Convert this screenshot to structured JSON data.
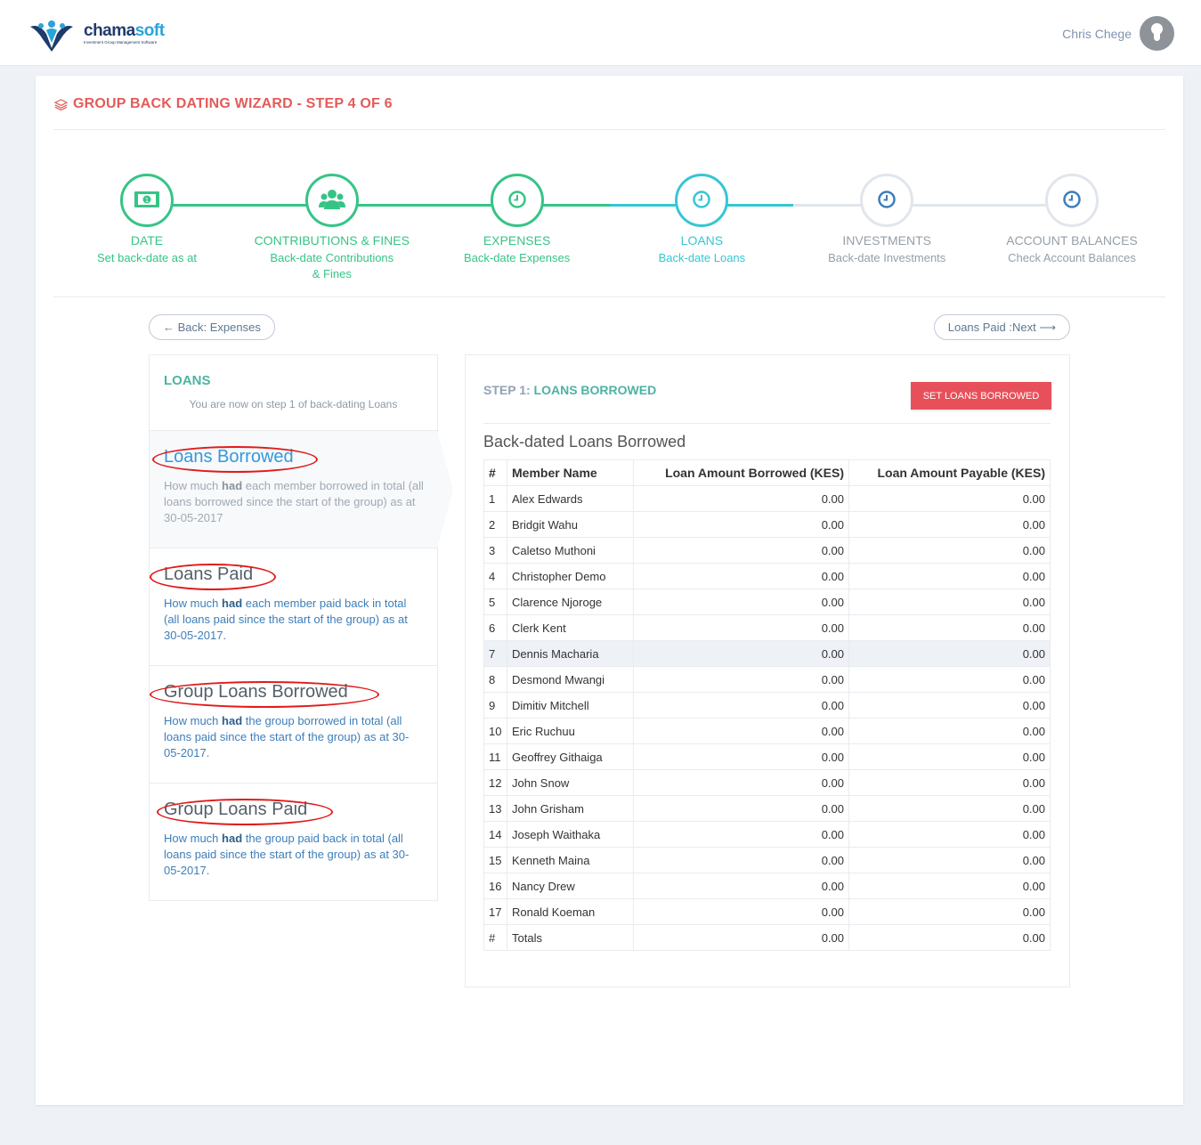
{
  "brand": {
    "name_main": "chama",
    "name_accent": "soft",
    "tagline": "Investment Group Management Software",
    "colors": {
      "primary": "#1f3b6b",
      "accent": "#2aa3d8"
    }
  },
  "user": {
    "name": "Chris Chege"
  },
  "page": {
    "title": "GROUP BACK DATING WIZARD - STEP 4 OF 6"
  },
  "wizard": {
    "steps": [
      {
        "title": "DATE",
        "desc": "Set back-date as at",
        "state": "done",
        "icon": "money-icon"
      },
      {
        "title": "CONTRIBUTIONS & FINES",
        "desc": "Back-date Contributions & Fines",
        "state": "done",
        "icon": "users-icon"
      },
      {
        "title": "EXPENSES",
        "desc": "Back-date Expenses",
        "state": "done",
        "icon": "clock-icon"
      },
      {
        "title": "LOANS",
        "desc": "Back-date Loans",
        "state": "active",
        "icon": "clock-icon"
      },
      {
        "title": "INVESTMENTS",
        "desc": "Back-date Investments",
        "state": "todo",
        "icon": "clock-icon"
      },
      {
        "title": "ACCOUNT BALANCES",
        "desc": "Check Account Balances",
        "state": "todo",
        "icon": "clock-icon"
      }
    ],
    "colors": {
      "done": "#36c486",
      "active": "#36c6d3",
      "todo": "#e1e5ec"
    }
  },
  "nav": {
    "back_label": "← Back: Expenses",
    "next_label": "Loans Paid :Next ⟶"
  },
  "sidebar": {
    "heading": "LOANS",
    "subheading": "You are now on step 1 of back-dating Loans",
    "items": [
      {
        "title": "Loans Borrowed",
        "pre": "How much ",
        "bold": "had",
        "post": " each member borrowed in total (all loans borrowed since the start of the group) as at 30-05-2017"
      },
      {
        "title": "Loans Paid",
        "pre": "How much ",
        "bold": "had",
        "post": " each member paid back in total (all loans paid since the start of the group) as at 30-05-2017."
      },
      {
        "title": "Group Loans Borrowed",
        "pre": "How much ",
        "bold": "had",
        "post": " the group borrowed in total (all loans paid since the start of the group) as at 30-05-2017."
      },
      {
        "title": "Group Loans Paid",
        "pre": "How much ",
        "bold": "had",
        "post": " the group paid back in total (all loans paid since the start of the group) as at 30-05-2017."
      }
    ]
  },
  "main": {
    "step_prefix": "STEP 1: ",
    "step_name": "LOANS BORROWED",
    "set_button": "SET LOANS BORROWED",
    "table_caption": "Back-dated Loans Borrowed",
    "columns": [
      "#",
      "Member Name",
      "Loan Amount Borrowed (KES)",
      "Loan Amount Payable (KES)"
    ],
    "rows": [
      [
        "1",
        "Alex Edwards",
        "0.00",
        "0.00"
      ],
      [
        "2",
        "Bridgit Wahu",
        "0.00",
        "0.00"
      ],
      [
        "3",
        "Caletso Muthoni",
        "0.00",
        "0.00"
      ],
      [
        "4",
        "Christopher Demo",
        "0.00",
        "0.00"
      ],
      [
        "5",
        "Clarence Njoroge",
        "0.00",
        "0.00"
      ],
      [
        "6",
        "Clerk Kent",
        "0.00",
        "0.00"
      ],
      [
        "7",
        "Dennis Macharia",
        "0.00",
        "0.00"
      ],
      [
        "8",
        "Desmond Mwangi",
        "0.00",
        "0.00"
      ],
      [
        "9",
        "Dimitiv Mitchell",
        "0.00",
        "0.00"
      ],
      [
        "10",
        "Eric Ruchuu",
        "0.00",
        "0.00"
      ],
      [
        "11",
        "Geoffrey Githaiga",
        "0.00",
        "0.00"
      ],
      [
        "12",
        "John Snow",
        "0.00",
        "0.00"
      ],
      [
        "13",
        "John Grisham",
        "0.00",
        "0.00"
      ],
      [
        "14",
        "Joseph Waithaka",
        "0.00",
        "0.00"
      ],
      [
        "15",
        "Kenneth Maina",
        "0.00",
        "0.00"
      ],
      [
        "16",
        "Nancy Drew",
        "0.00",
        "0.00"
      ],
      [
        "17",
        "Ronald Koeman",
        "0.00",
        "0.00"
      ],
      [
        "#",
        "Totals",
        "0.00",
        "0.00"
      ]
    ],
    "highlight_row": 7
  }
}
